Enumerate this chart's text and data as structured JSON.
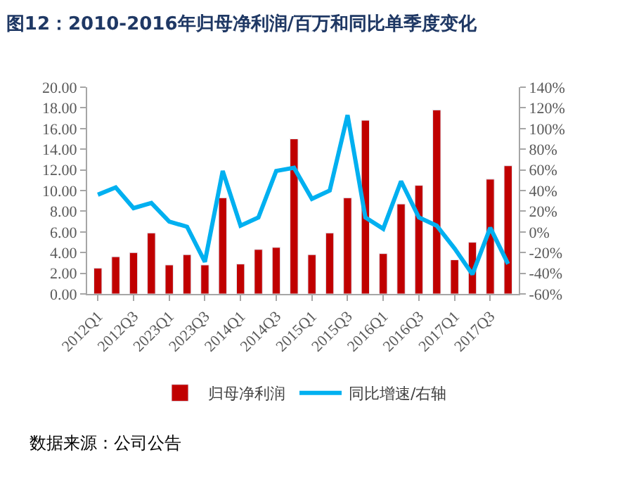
{
  "chart_data": {
    "type": "bar",
    "title": "图12：2010-2016年归母净利润/百万和同比单季度变化",
    "categories": [
      "2012Q1",
      null,
      "2012Q3",
      null,
      "2023Q1",
      null,
      "2023Q3",
      null,
      "2014Q1",
      null,
      "2014Q3",
      null,
      "2015Q1",
      null,
      "2015Q3",
      null,
      "2016Q1",
      null,
      "2016Q3",
      null,
      "2017Q1",
      null,
      "2017Q3",
      null
    ],
    "series": [
      {
        "name": "归母净利润",
        "color": "#c00000",
        "values": [
          2.5,
          3.6,
          4.0,
          5.9,
          2.8,
          3.8,
          2.8,
          9.3,
          2.9,
          4.3,
          4.5,
          15.0,
          3.8,
          5.9,
          9.3,
          16.8,
          3.9,
          8.7,
          10.5,
          17.8,
          3.3,
          5.0,
          11.1,
          12.4
        ]
      },
      {
        "name": "同比增速/右轴",
        "type": "line",
        "axis": "y2",
        "color": "#00b0f0",
        "values": [
          36,
          43,
          23,
          28,
          10,
          5,
          -29,
          59,
          6,
          14,
          59,
          62,
          32,
          40,
          113,
          14,
          3,
          49,
          14,
          6,
          -16,
          -41,
          4,
          -31
        ]
      }
    ],
    "ylim": [
      0,
      20
    ],
    "yticks": [
      {
        "value": 0,
        "label": "0.00"
      },
      {
        "value": 2,
        "label": "2.00"
      },
      {
        "value": 4,
        "label": "4.00"
      },
      {
        "value": 6,
        "label": "6.00"
      },
      {
        "value": 8,
        "label": "8.00"
      },
      {
        "value": 10,
        "label": "10.00"
      },
      {
        "value": 12,
        "label": "12.00"
      },
      {
        "value": 14,
        "label": "14.00"
      },
      {
        "value": 16,
        "label": "16.00"
      },
      {
        "value": 18,
        "label": "18.00"
      },
      {
        "value": 20,
        "label": "20.00"
      }
    ],
    "y2lim": [
      -60,
      140
    ],
    "y2ticks": [
      {
        "value": -60,
        "label": "-60%"
      },
      {
        "value": -40,
        "label": "-40%"
      },
      {
        "value": -20,
        "label": "-20%"
      },
      {
        "value": 0,
        "label": "0%"
      },
      {
        "value": 20,
        "label": "20%"
      },
      {
        "value": 40,
        "label": "40%"
      },
      {
        "value": 60,
        "label": "60%"
      },
      {
        "value": 80,
        "label": "80%"
      },
      {
        "value": 100,
        "label": "100%"
      },
      {
        "value": 120,
        "label": "120%"
      },
      {
        "value": 140,
        "label": "140%"
      }
    ],
    "legend": "bottom",
    "marker": "none",
    "line_style": "solid",
    "annotations": [
      "数据来源：公司公告"
    ]
  }
}
